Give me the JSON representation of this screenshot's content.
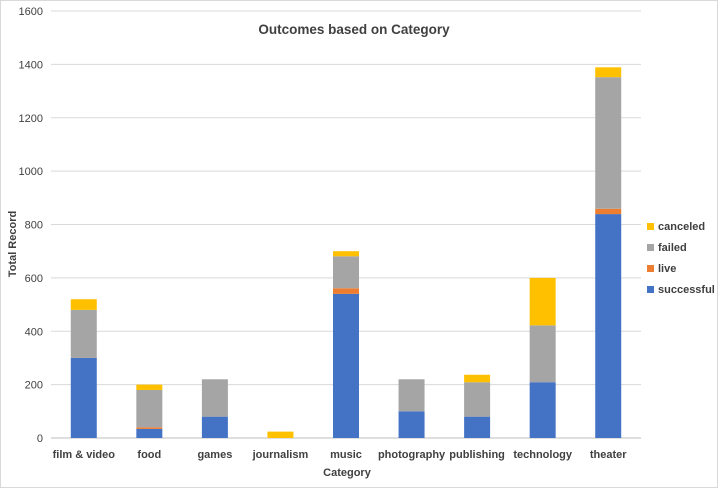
{
  "chart_data": {
    "type": "bar",
    "stacked": true,
    "title": "Outcomes based on Category",
    "xlabel": "Category",
    "ylabel": "Total Record",
    "ylim": [
      0,
      1600
    ],
    "yticks": [
      0,
      200,
      400,
      600,
      800,
      1000,
      1200,
      1400,
      1600
    ],
    "grid": true,
    "legend_position": "right",
    "categories": [
      "film & video",
      "food",
      "games",
      "journalism",
      "music",
      "photography",
      "publishing",
      "technology",
      "theater"
    ],
    "series": [
      {
        "name": "successful",
        "color": "#4472c4",
        "values": [
          300,
          34,
          80,
          0,
          540,
          100,
          80,
          209,
          839
        ]
      },
      {
        "name": "live",
        "color": "#ed7d31",
        "values": [
          0,
          6,
          0,
          0,
          21,
          0,
          0,
          0,
          20
        ]
      },
      {
        "name": "failed",
        "color": "#a5a5a5",
        "values": [
          180,
          140,
          140,
          0,
          120,
          120,
          129,
          213,
          493
        ]
      },
      {
        "name": "canceled",
        "color": "#ffc000",
        "values": [
          40,
          20,
          0,
          24,
          19,
          0,
          28,
          178,
          37
        ]
      }
    ],
    "legend_order": [
      "canceled",
      "failed",
      "live",
      "successful"
    ]
  }
}
